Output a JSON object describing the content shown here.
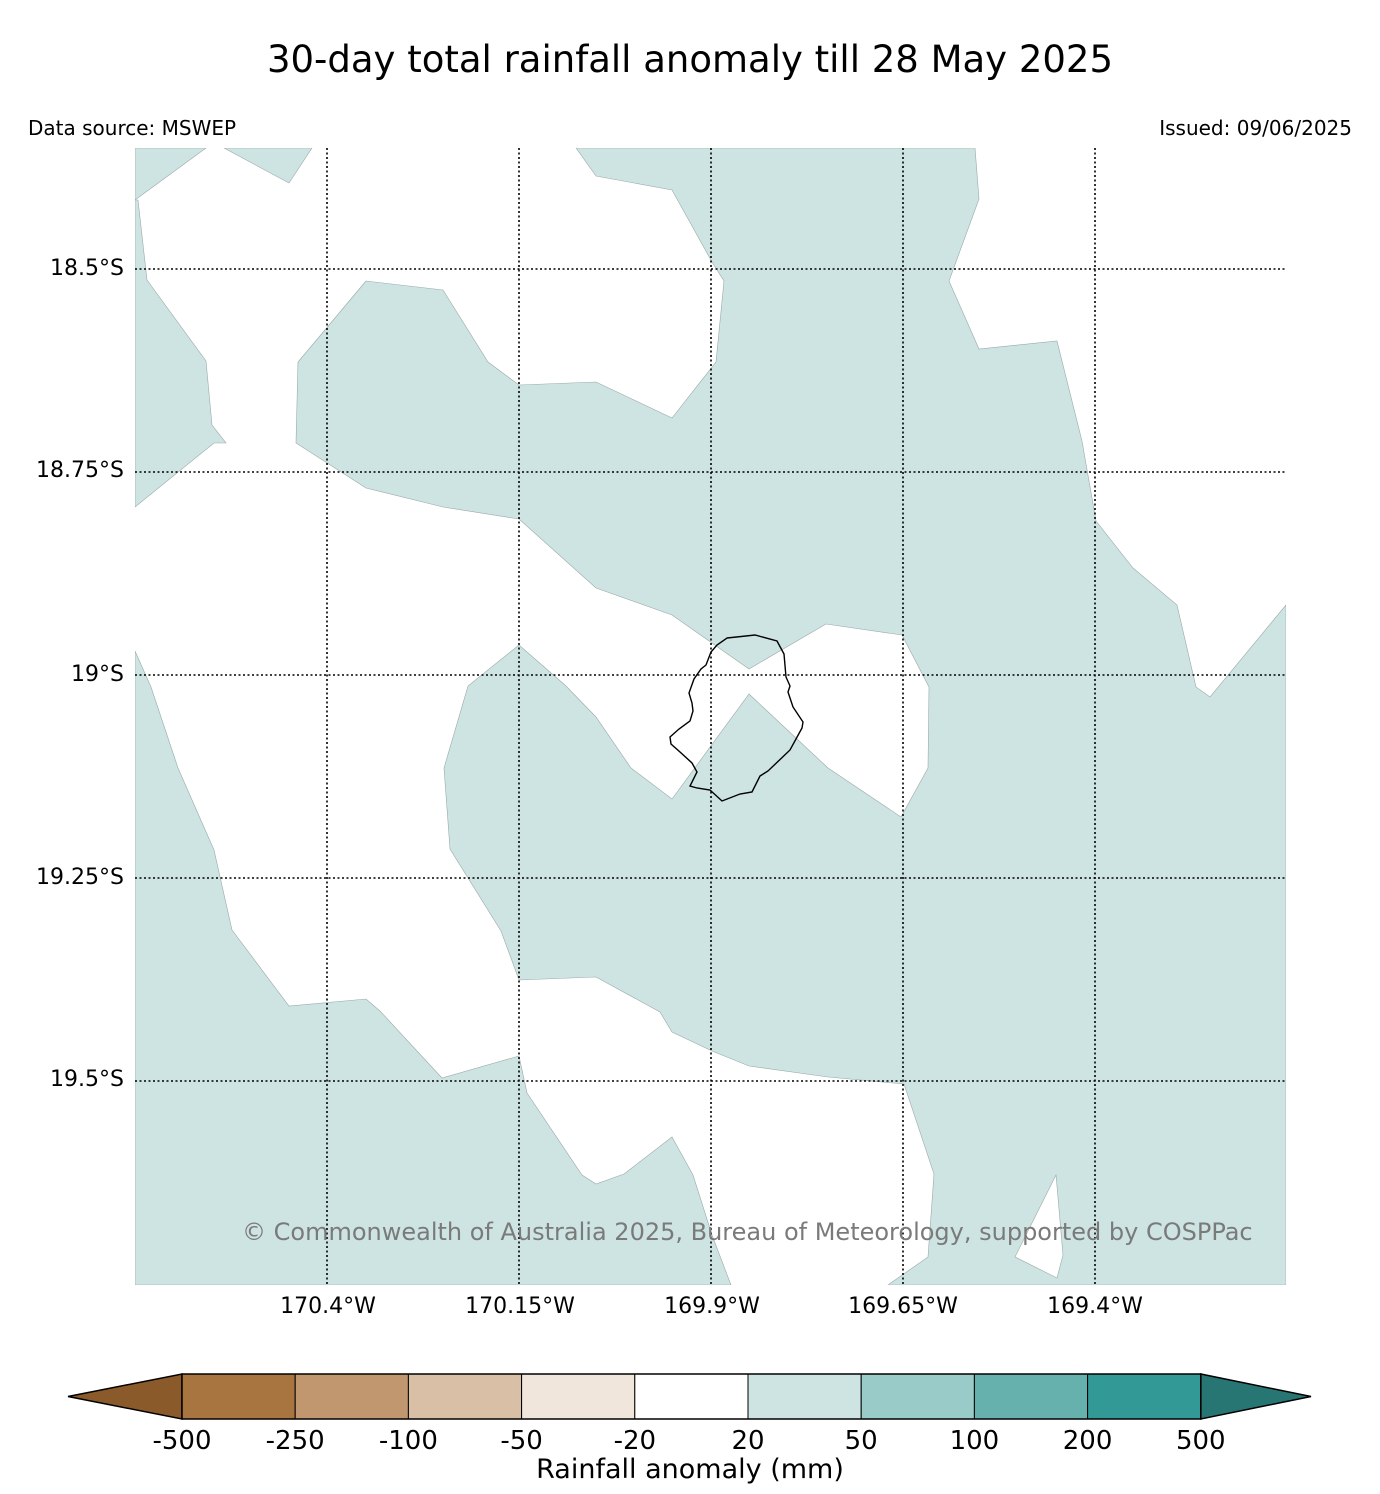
{
  "title": "30-day total rainfall anomaly till 28 May 2025",
  "data_source": "Data source: MSWEP",
  "issued": "Issued: 09/06/2025",
  "copyright": "© Commonwealth of Australia 2025, Bureau of Meteorology, supported by COSPPac",
  "map": {
    "latitude_labels": [
      "18.5°S",
      "18.75°S",
      "19°S",
      "19.25°S",
      "19.5°S"
    ],
    "longitude_labels": [
      "170.4°W",
      "170.15°W",
      "169.9°W",
      "169.65°W",
      "169.4°W"
    ],
    "fill_color_20_to_50": "#cde4e2",
    "fill_color_neutral": "#ffffff",
    "coastline_color": "#000000",
    "gridline_style": "dotted"
  },
  "colorbar": {
    "label": "Rainfall anomaly (mm)",
    "ticks": [
      "-500",
      "-250",
      "-100",
      "-50",
      "-20",
      "20",
      "50",
      "100",
      "200",
      "500"
    ],
    "colors": [
      "#8b5a2b",
      "#a87440",
      "#c19770",
      "#d8bfa6",
      "#f0e6dc",
      "#ffffff",
      "#cde4e2",
      "#99cbc9",
      "#66b0ae",
      "#339996",
      "#277674"
    ]
  }
}
